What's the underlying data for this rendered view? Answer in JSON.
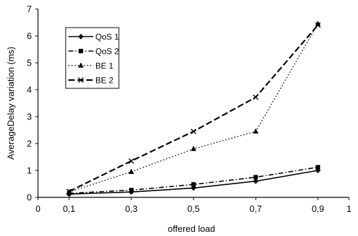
{
  "chart_data": {
    "type": "line",
    "title": "",
    "xlabel": "offered load",
    "ylabel": "AverageDelay variation (ms)",
    "xlim": [
      0,
      1
    ],
    "ylim": [
      0,
      7
    ],
    "x_ticks": [
      "0",
      "0,1",
      "0,3",
      "0,5",
      "0,7",
      "0,9",
      "1"
    ],
    "x_tick_values": [
      0,
      0.1,
      0.3,
      0.5,
      0.7,
      0.9,
      1
    ],
    "y_ticks": [
      "0",
      "1",
      "2",
      "3",
      "4",
      "5",
      "6",
      "7"
    ],
    "y_tick_values": [
      0,
      1,
      2,
      3,
      4,
      5,
      6,
      7
    ],
    "grid": false,
    "legend_position": "top-left",
    "x": [
      0.1,
      0.3,
      0.5,
      0.7,
      0.9
    ],
    "series": [
      {
        "name": "QoS 1",
        "values": [
          0.12,
          0.2,
          0.35,
          0.6,
          1.0
        ],
        "marker": "diamond",
        "dash": "solid"
      },
      {
        "name": "QoS 2",
        "values": [
          0.15,
          0.27,
          0.48,
          0.75,
          1.12
        ],
        "marker": "square",
        "dash": "dashdot"
      },
      {
        "name": "BE 1",
        "values": [
          0.2,
          0.95,
          1.8,
          2.45,
          6.45
        ],
        "marker": "triangle",
        "dash": "dotted"
      },
      {
        "name": "BE 2",
        "values": [
          0.22,
          1.35,
          2.45,
          3.72,
          6.4
        ],
        "marker": "x",
        "dash": "dashed"
      }
    ]
  }
}
